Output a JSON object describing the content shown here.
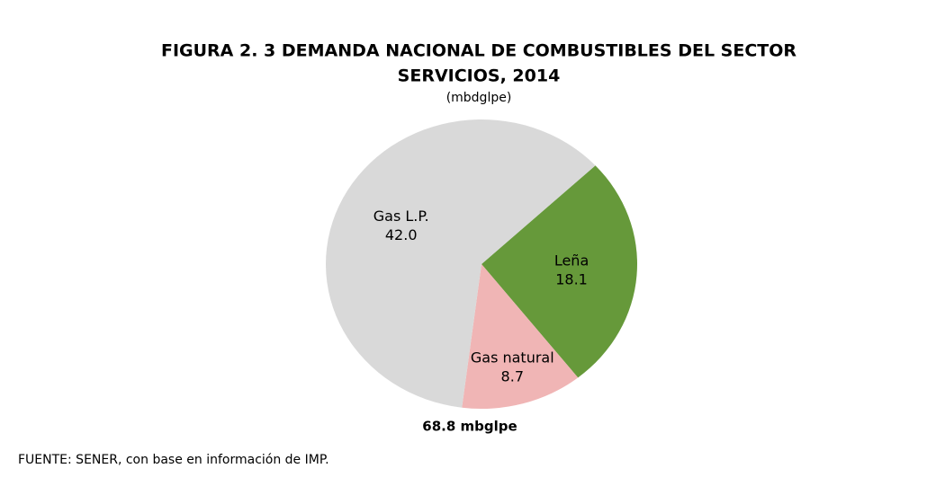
{
  "chart_data": {
    "type": "pie",
    "title": "FIGURA 2. 3 DEMANDA NACIONAL DE COMBUSTIBLES DEL SECTOR",
    "title_line2": "SERVICIOS, 2014",
    "subtitle": "(mbdglpe)",
    "categories": [
      "Leña",
      "Gas natural",
      "Gas L.P."
    ],
    "values": [
      18.1,
      8.7,
      42.0
    ],
    "value_labels": [
      "18.1",
      "8.7",
      "42.0"
    ],
    "colors": [
      "#66993a",
      "#f0b5b5",
      "#d9d9d9"
    ],
    "total_label": "68.8 mbglpe",
    "source": "FUENTE: SENER, con base en información de IMP."
  }
}
